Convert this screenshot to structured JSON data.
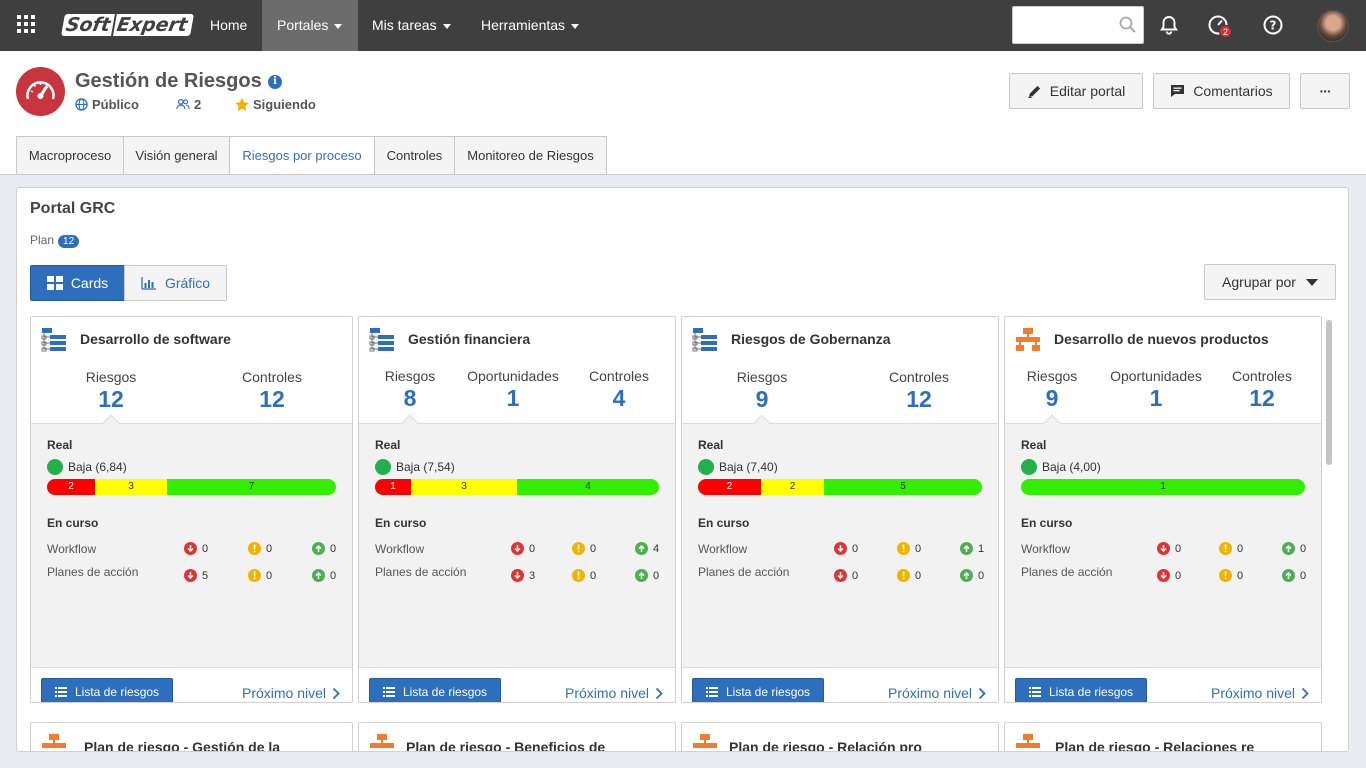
{
  "topbar": {
    "logo_a": "Soft",
    "logo_b": "Expert",
    "nav": [
      {
        "label": "Home",
        "dropdown": false
      },
      {
        "label": "Portales",
        "dropdown": true
      },
      {
        "label": "Mis tareas",
        "dropdown": true
      },
      {
        "label": "Herramientas",
        "dropdown": true
      }
    ],
    "search_value": "",
    "notifications_badge": "2"
  },
  "header": {
    "title": "Gestión de Riesgos",
    "visibility": "Público",
    "members": "2",
    "follow_status": "Siguiendo",
    "edit_button": "Editar portal",
    "comments_button": "Comentarios",
    "more_button": "···"
  },
  "tabs": [
    {
      "label": "Macroproceso",
      "active": false
    },
    {
      "label": "Visión general",
      "active": false
    },
    {
      "label": "Riesgos por proceso",
      "active": true
    },
    {
      "label": "Controles",
      "active": false
    },
    {
      "label": "Monitoreo de Riesgos",
      "active": false
    }
  ],
  "main": {
    "title": "Portal GRC",
    "plan_label": "Plan",
    "plan_count": "12",
    "view_cards": "Cards",
    "view_chart": "Gráfico",
    "group_by": "Agrupar por"
  },
  "colors": {
    "accent": "#2e6fbd",
    "danger": "#ff0000",
    "warning": "#ffff00",
    "ok": "#33ee00"
  },
  "cards": [
    {
      "icon": "tree-blue-icon",
      "title": "Desarrollo de software",
      "stats": [
        {
          "label": "Riesgos",
          "value": "12"
        },
        {
          "label": "Controles",
          "value": "12"
        }
      ],
      "real_label": "Real",
      "level": "Baja (6,84)",
      "bar": [
        {
          "value": "2",
          "color": "r"
        },
        {
          "value": "3",
          "color": "y"
        },
        {
          "value": "7",
          "color": "g"
        }
      ],
      "en_curso_label": "En curso",
      "workflow_label": "Workflow",
      "workflow": [
        "0",
        "0",
        "0"
      ],
      "planes_label": "Planes de acción",
      "planes": [
        "5",
        "0",
        "0"
      ],
      "list_button": "Lista de riesgos",
      "next_link": "Próximo nivel"
    },
    {
      "icon": "tree-blue-icon",
      "title": "Gestión financiera",
      "stats": [
        {
          "label": "Riesgos",
          "value": "8"
        },
        {
          "label": "Oportunidades",
          "value": "1"
        },
        {
          "label": "Controles",
          "value": "4"
        }
      ],
      "real_label": "Real",
      "level": "Baja (7,54)",
      "bar": [
        {
          "value": "1",
          "color": "r"
        },
        {
          "value": "3",
          "color": "y"
        },
        {
          "value": "4",
          "color": "g"
        }
      ],
      "en_curso_label": "En curso",
      "workflow_label": "Workflow",
      "workflow": [
        "0",
        "0",
        "4"
      ],
      "planes_label": "Planes de acción",
      "planes": [
        "3",
        "0",
        "0"
      ],
      "list_button": "Lista de riesgos",
      "next_link": "Próximo nivel"
    },
    {
      "icon": "tree-blue-icon",
      "title": "Riesgos de Gobernanza",
      "stats": [
        {
          "label": "Riesgos",
          "value": "9"
        },
        {
          "label": "Controles",
          "value": "12"
        }
      ],
      "real_label": "Real",
      "level": "Baja (7,40)",
      "bar": [
        {
          "value": "2",
          "color": "r"
        },
        {
          "value": "2",
          "color": "y"
        },
        {
          "value": "5",
          "color": "g"
        }
      ],
      "en_curso_label": "En curso",
      "workflow_label": "Workflow",
      "workflow": [
        "0",
        "0",
        "1"
      ],
      "planes_label": "Planes de acción",
      "planes": [
        "0",
        "0",
        "0"
      ],
      "list_button": "Lista de riesgos",
      "next_link": "Próximo nivel"
    },
    {
      "icon": "org-orange-icon",
      "title": "Desarrollo de nuevos productos",
      "stats": [
        {
          "label": "Riesgos",
          "value": "9"
        },
        {
          "label": "Oportunidades",
          "value": "1"
        },
        {
          "label": "Controles",
          "value": "12"
        }
      ],
      "real_label": "Real",
      "level": "Baja (4,00)",
      "bar": [
        {
          "value": "1",
          "color": "g"
        }
      ],
      "en_curso_label": "En curso",
      "workflow_label": "Workflow",
      "workflow": [
        "0",
        "0",
        "0"
      ],
      "planes_label": "Planes de acción",
      "planes": [
        "0",
        "0",
        "0"
      ],
      "list_button": "Lista de riesgos",
      "next_link": "Próximo nivel"
    }
  ],
  "cards_row2": [
    {
      "title": "Plan de riesgo - Gestión de la"
    },
    {
      "title": "Plan de riesgo - Beneficios de"
    },
    {
      "title": "Plan de riesgo - Relación pro"
    },
    {
      "title": "Plan de riesgo - Relaciones re"
    }
  ]
}
